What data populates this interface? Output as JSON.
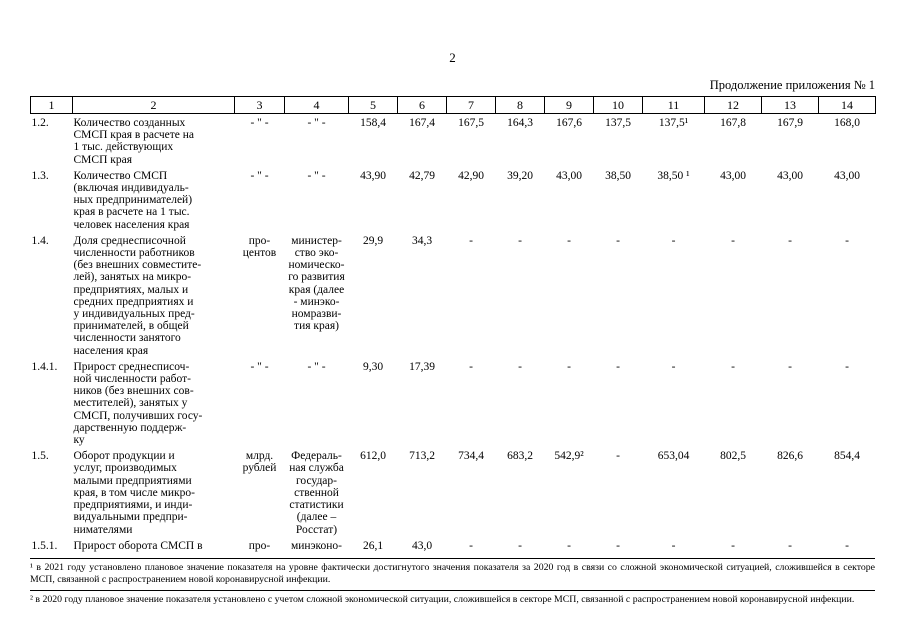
{
  "page": {
    "number": "2",
    "continuation_note": "Продолжение приложения № 1"
  },
  "table": {
    "column_numbers": [
      "1",
      "2",
      "3",
      "4",
      "5",
      "6",
      "7",
      "8",
      "9",
      "10",
      "11",
      "12",
      "13",
      "14"
    ],
    "rows": [
      {
        "num": "1.2.",
        "name": "Количество созданных\nСМСП края в расчете на\n1 тыс. действующих\nСМСП края",
        "unit": "- \" -",
        "source": "- \" -",
        "values": [
          "158,4",
          "167,4",
          "167,5",
          "164,3",
          "167,6",
          "137,5",
          "137,5¹",
          "167,8",
          "167,9",
          "168,0"
        ]
      },
      {
        "num": "1.3.",
        "name": "Количество СМСП\n(включая индивидуаль-\nных предпринимателей)\nкрая в расчете на 1 тыс.\nчеловек населения края",
        "unit": "- \" -",
        "source": "- \" -",
        "values": [
          "43,90",
          "42,79",
          "42,90",
          "39,20",
          "43,00",
          "38,50",
          "38,50 ¹",
          "43,00",
          "43,00",
          "43,00"
        ]
      },
      {
        "num": "1.4.",
        "name": "Доля среднесписочной\nчисленности работников\n(без внешних совместите-\nлей), занятых на микро-\nпредприятиях, малых и\nсредних предприятиях и\nу индивидуальных пред-\nпринимателей, в общей\nчисленности занятого\nнаселения края",
        "unit": "про-\nцентов",
        "source": "министер-\nство эко-\nномическо-\nго развития\nкрая (далее\n- минэко-\nномразви-\nтия края)",
        "values": [
          "29,9",
          "34,3",
          "-",
          "-",
          "-",
          "-",
          "-",
          "-",
          "-",
          "-"
        ]
      },
      {
        "num": "1.4.1.",
        "name": "Прирост среднесписоч-\nной численности работ-\nников (без внешних сов-\nместителей), занятых у\nСМСП, получивших госу-\nдарственную поддерж-\nку",
        "unit": "- \" -",
        "source": "- \" -",
        "values": [
          "9,30",
          "17,39",
          "-",
          "-",
          "-",
          "-",
          "-",
          "-",
          "-",
          "-"
        ]
      },
      {
        "num": "1.5.",
        "name": "Оборот продукции и\nуслуг, производимых\nмалыми предприятиями\nкрая, в том числе микро-\nпредприятиями, и инди-\nвидуальными предпри-\nнимателями",
        "unit": "млрд.\nрублей",
        "source": "Федераль-\nная служба\nгосудар-\nственной\nстатистики\n(далее –\nРосстат)",
        "values": [
          "612,0",
          "713,2",
          "734,4",
          "683,2",
          "542,9²",
          "-",
          "653,04",
          "802,5",
          "826,6",
          "854,4"
        ]
      },
      {
        "num": "1.5.1.",
        "name": "Прирост оборота СМСП в",
        "unit": "про-",
        "source": "минэконо-",
        "values": [
          "26,1",
          "43,0",
          "-",
          "-",
          "-",
          "-",
          "-",
          "-",
          "-",
          "-"
        ]
      }
    ]
  },
  "footnotes": [
    "¹ в 2021 году установлено плановое значение показателя на уровне фактически достигнутого значения показателя за 2020 год в связи со сложной экономической ситуацией, сложившейся в секторе МСП, связанной с распространением новой коронавирусной инфекции.",
    "² в 2020 году плановое значение показателя установлено с учетом сложной экономической ситуации, сложившейся в секторе МСП, связанной с распространением новой коронавирусной инфекции."
  ]
}
